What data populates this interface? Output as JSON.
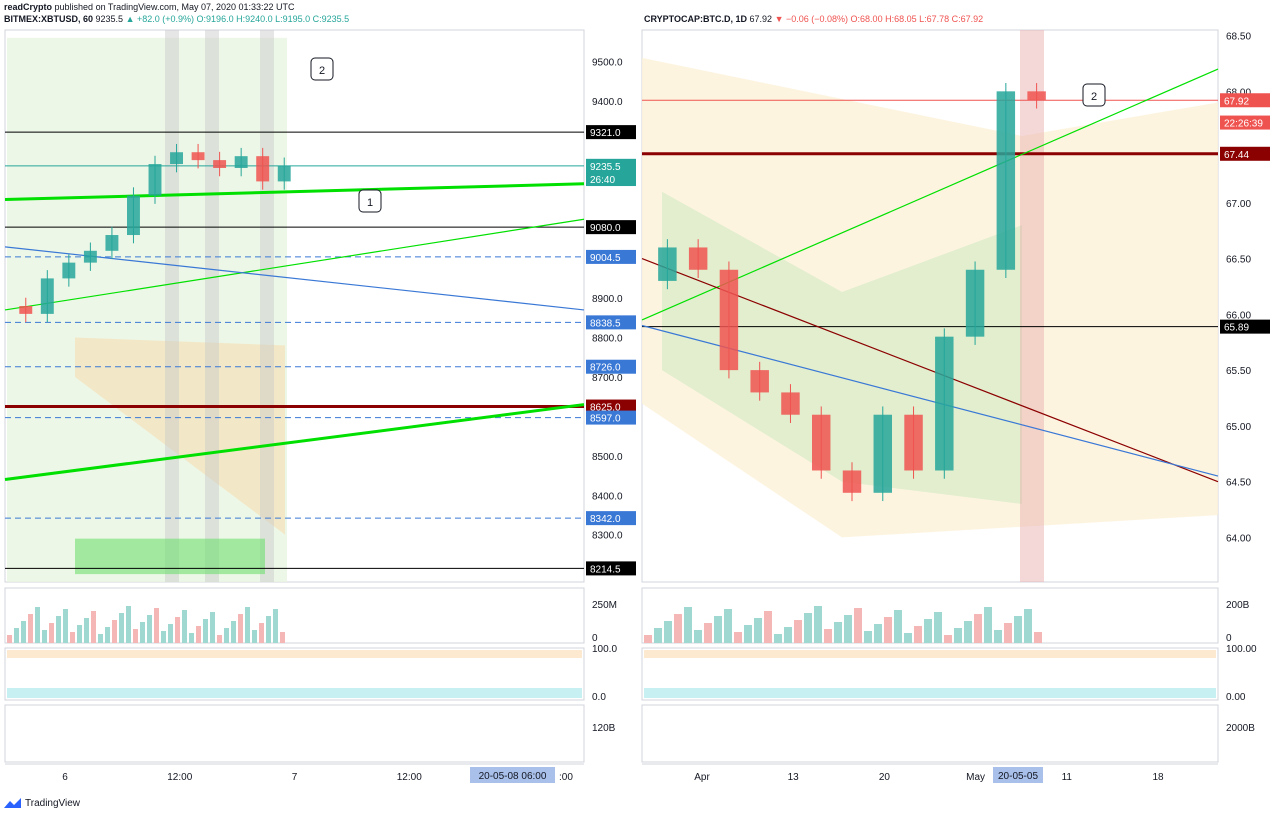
{
  "header": {
    "publisher": "readCrypto",
    "published_text": "published on TradingView.com, May 07, 2020 01:33:22 UTC"
  },
  "left_panel": {
    "symbol": "BITMEX:XBTUSD, 60",
    "last": "9235.5",
    "change": "▲ +82.0 (+0.9%)",
    "ohlc": "O:9196.0 H:9240.0 L:9195.0 C:9235.5",
    "ticks": [
      "9500.0",
      "9400.0",
      "9000.0",
      "8900.0",
      "8800.0",
      "8700.0",
      "8500.0",
      "8400.0",
      "8300.0"
    ],
    "ylim": [
      8180,
      9580
    ],
    "price_tags": [
      {
        "value": 9321.0,
        "text": "9321.0",
        "color": "#000000"
      },
      {
        "value": 9235.5,
        "text": "9235.5",
        "color": "#26a69a"
      },
      {
        "value": 9202.0,
        "text": "26:40",
        "color": "#26a69a"
      },
      {
        "value": 9080.0,
        "text": "9080.0",
        "color": "#000000"
      },
      {
        "value": 9004.5,
        "text": "9004.5",
        "color": "#3a78d6"
      },
      {
        "value": 8838.5,
        "text": "8838.5",
        "color": "#3a78d6"
      },
      {
        "value": 8726.0,
        "text": "8726.0",
        "color": "#3a78d6"
      },
      {
        "value": 8625.0,
        "text": "8625.0",
        "color": "#8b0000"
      },
      {
        "value": 8597.0,
        "text": "8597.0",
        "color": "#3a78d6"
      },
      {
        "value": 8342.0,
        "text": "8342.0",
        "color": "#3a78d6"
      },
      {
        "value": 8214.5,
        "text": "8214.5",
        "color": "#000000"
      }
    ],
    "volume_axis": [
      "250M",
      "0"
    ],
    "osc_axis": [
      "100.0",
      "0.0"
    ],
    "obv_axis": [
      "120B"
    ],
    "x_labels": [
      "6",
      "12:00",
      "7",
      "12:00",
      "8"
    ],
    "x_highlight": [
      "20-05-08",
      "06:00"
    ],
    "x_after": ":00",
    "notes": [
      "1",
      "2"
    ],
    "colors": {
      "up": "#26a69a",
      "down": "#ef5350",
      "trend": "#00e000",
      "support": "#3a78d6"
    }
  },
  "right_panel": {
    "symbol": "CRYPTOCAP:BTC.D, 1D",
    "last": "67.92",
    "change": "▼ −0.06 (−0.08%)",
    "ohlc": "O:68.00 H:68.05 L:67.78 C:67.92",
    "ticks": [
      "68.50",
      "68.00",
      "67.00",
      "66.50",
      "66.00",
      "65.50",
      "65.00",
      "64.50",
      "64.00"
    ],
    "ylim": [
      63.6,
      68.55
    ],
    "price_tags": [
      {
        "value": 67.92,
        "text": "67.92",
        "color": "#ef5350"
      },
      {
        "value": 67.72,
        "text": "22:26:39",
        "color": "#ef5350"
      },
      {
        "value": 67.44,
        "text": "67.44",
        "color": "#8b0000"
      },
      {
        "value": 65.89,
        "text": "65.89",
        "color": "#000000"
      }
    ],
    "volume_axis": [
      "200B",
      "0"
    ],
    "osc_axis": [
      "100.00",
      "0.00"
    ],
    "obv_axis": [
      "2000B"
    ],
    "x_labels": [
      "Apr",
      "13",
      "20",
      "May",
      "11",
      "18"
    ],
    "x_highlight": [
      "20-05-05"
    ],
    "notes": [
      "2"
    ],
    "colors": {
      "up": "#26a69a",
      "down": "#ef5350",
      "trend": "#00e000",
      "support": "#3a78d6",
      "resist": "#8b0000"
    }
  },
  "chart_data": [
    {
      "type": "candlestick",
      "title": "BITMEX:XBTUSD, 60",
      "x": [
        "6 00:00",
        "6 02:00",
        "6 04:00",
        "6 06:00",
        "6 08:00",
        "6 10:00",
        "6 12:00",
        "6 14:00",
        "6 16:00",
        "6 18:00",
        "6 20:00",
        "6 22:00",
        "7 00:00"
      ],
      "series": [
        {
          "open": [
            8880,
            8860,
            8950,
            8990,
            9020,
            9060,
            9160,
            9240,
            9270,
            9250,
            9230,
            9260,
            9196
          ],
          "close": [
            8860,
            8950,
            8990,
            9020,
            9060,
            9160,
            9240,
            9270,
            9250,
            9230,
            9260,
            9196,
            9235.5
          ]
        }
      ],
      "ylim": [
        8180,
        9580
      ]
    },
    {
      "type": "candlestick",
      "title": "CRYPTOCAP:BTC.D, 1D",
      "x": [
        "Apr 01",
        "Apr 04",
        "Apr 07",
        "Apr 10",
        "Apr 13",
        "Apr 16",
        "Apr 19",
        "Apr 22",
        "Apr 25",
        "Apr 28",
        "May 01",
        "May 04",
        "May 07"
      ],
      "series": [
        {
          "open": [
            66.3,
            66.6,
            66.4,
            65.5,
            65.3,
            65.1,
            64.6,
            64.4,
            65.1,
            64.6,
            65.8,
            66.4,
            68.0
          ],
          "close": [
            66.6,
            66.4,
            65.5,
            65.3,
            65.1,
            64.6,
            64.4,
            65.1,
            64.6,
            65.8,
            66.4,
            68.0,
            67.92
          ]
        }
      ],
      "ylim": [
        63.6,
        68.55
      ]
    }
  ]
}
